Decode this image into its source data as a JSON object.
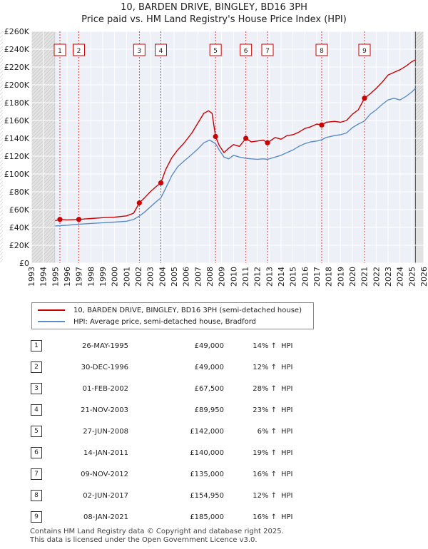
{
  "title_line1": "10, BARDEN DRIVE, BINGLEY, BD16 3PH",
  "title_line2": "Price paid vs. HM Land Registry's House Price Index (HPI)",
  "chart_data": {
    "type": "line",
    "title": "10, BARDEN DRIVE, BINGLEY, BD16 3PH — Price paid vs. HM Land Registry's House Price Index (HPI)",
    "xlabel": "",
    "ylabel": "",
    "xlim": [
      1993,
      2026
    ],
    "ylim": [
      0,
      260000
    ],
    "x_ticks": [
      1993,
      1994,
      1995,
      1996,
      1997,
      1998,
      1999,
      2000,
      2001,
      2002,
      2003,
      2004,
      2005,
      2006,
      2007,
      2008,
      2009,
      2010,
      2011,
      2012,
      2013,
      2014,
      2015,
      2016,
      2017,
      2018,
      2019,
      2020,
      2021,
      2022,
      2023,
      2024,
      2025,
      2026
    ],
    "y_ticks": [
      0,
      20000,
      40000,
      60000,
      80000,
      100000,
      120000,
      140000,
      160000,
      180000,
      200000,
      220000,
      240000,
      260000
    ],
    "y_tick_labels": [
      "£0",
      "£20K",
      "£40K",
      "£60K",
      "£80K",
      "£100K",
      "£120K",
      "£140K",
      "£160K",
      "£180K",
      "£200K",
      "£220K",
      "£240K",
      "£260K"
    ],
    "grid": true,
    "data_range": [
      1995.0,
      2025.3
    ],
    "series": [
      {
        "name": "10, BARDEN DRIVE, BINGLEY, BD16 3PH (semi-detached house)",
        "color": "#cc0000",
        "x": [
          1995.0,
          1995.4,
          1996.0,
          1996.99,
          1997.5,
          1998.0,
          1999.0,
          2000.0,
          2001.0,
          2001.6,
          2002.08,
          2002.5,
          2003.0,
          2003.5,
          2003.89,
          2004.3,
          2004.8,
          2005.3,
          2005.8,
          2006.5,
          2007.0,
          2007.5,
          2007.9,
          2008.2,
          2008.49,
          2008.8,
          2009.2,
          2009.6,
          2010.0,
          2010.5,
          2011.04,
          2011.5,
          2012.0,
          2012.5,
          2012.86,
          2013.5,
          2014.0,
          2014.5,
          2015.0,
          2015.5,
          2016.0,
          2016.5,
          2017.0,
          2017.42,
          2017.8,
          2018.5,
          2019.0,
          2019.5,
          2020.0,
          2020.5,
          2021.02,
          2021.5,
          2022.0,
          2022.5,
          2023.0,
          2023.5,
          2024.0,
          2024.5,
          2025.0,
          2025.3
        ],
        "values": [
          47500,
          49000,
          48500,
          49000,
          49500,
          50000,
          51000,
          51500,
          53000,
          56000,
          67500,
          73000,
          80000,
          86000,
          89950,
          105000,
          118000,
          127000,
          134000,
          146000,
          157000,
          168000,
          171000,
          168000,
          142000,
          132000,
          124000,
          129000,
          133000,
          131000,
          140000,
          136000,
          137000,
          138000,
          135000,
          141000,
          139000,
          143000,
          144000,
          147000,
          151000,
          153000,
          156000,
          154950,
          158000,
          159000,
          158000,
          160000,
          167000,
          172000,
          185000,
          190000,
          196000,
          203000,
          211000,
          214000,
          217000,
          221000,
          226000,
          228000
        ]
      },
      {
        "name": "HPI: Average price, semi-detached house, Bradford",
        "color": "#5b8cc8",
        "x": [
          1995.0,
          1996.0,
          1997.0,
          1998.0,
          1999.0,
          2000.0,
          2001.0,
          2001.6,
          2002.08,
          2002.5,
          2003.0,
          2003.5,
          2003.89,
          2004.3,
          2004.8,
          2005.3,
          2005.8,
          2006.5,
          2007.0,
          2007.5,
          2008.0,
          2008.49,
          2008.8,
          2009.2,
          2009.6,
          2010.0,
          2010.5,
          2011.04,
          2011.5,
          2012.0,
          2012.5,
          2012.86,
          2013.5,
          2014.0,
          2014.5,
          2015.0,
          2015.5,
          2016.0,
          2016.5,
          2017.0,
          2017.42,
          2017.8,
          2018.5,
          2019.0,
          2019.5,
          2020.0,
          2020.5,
          2021.02,
          2021.5,
          2022.0,
          2022.5,
          2023.0,
          2023.5,
          2024.0,
          2024.5,
          2025.0,
          2025.3
        ],
        "values": [
          41700,
          42500,
          43700,
          44500,
          45300,
          46000,
          47000,
          49000,
          52700,
          57000,
          63000,
          69000,
          73100,
          84000,
          98000,
          108000,
          114000,
          122000,
          128000,
          135000,
          138000,
          134000,
          127000,
          119000,
          117000,
          121000,
          119000,
          117600,
          117000,
          116500,
          117000,
          116400,
          119000,
          121000,
          124000,
          127000,
          131000,
          134000,
          136000,
          137000,
          138300,
          141000,
          143000,
          144000,
          146000,
          152000,
          156000,
          159500,
          167000,
          172000,
          178000,
          183000,
          185000,
          183000,
          187000,
          192000,
          196000
        ]
      }
    ],
    "sales": [
      {
        "n": "1",
        "x": 1995.4,
        "price": 49000
      },
      {
        "n": "2",
        "x": 1996.99,
        "price": 49000
      },
      {
        "n": "3",
        "x": 2002.08,
        "price": 67500
      },
      {
        "n": "4",
        "x": 2003.89,
        "price": 89950
      },
      {
        "n": "5",
        "x": 2008.49,
        "price": 142000
      },
      {
        "n": "6",
        "x": 2011.04,
        "price": 140000
      },
      {
        "n": "7",
        "x": 2012.86,
        "price": 135000
      },
      {
        "n": "8",
        "x": 2017.42,
        "price": 154950
      },
      {
        "n": "9",
        "x": 2021.02,
        "price": 185000
      }
    ]
  },
  "legend": {
    "red": "10, BARDEN DRIVE, BINGLEY, BD16 3PH (semi-detached house)",
    "blue": "HPI: Average price, semi-detached house, Bradford"
  },
  "table": [
    {
      "n": "1",
      "date": "26-MAY-1995",
      "price": "£49,000",
      "pct": "14% ↑",
      "dir": "HPI"
    },
    {
      "n": "2",
      "date": "30-DEC-1996",
      "price": "£49,000",
      "pct": "12% ↑",
      "dir": "HPI"
    },
    {
      "n": "3",
      "date": "01-FEB-2002",
      "price": "£67,500",
      "pct": "28% ↑",
      "dir": "HPI"
    },
    {
      "n": "4",
      "date": "21-NOV-2003",
      "price": "£89,950",
      "pct": "23% ↑",
      "dir": "HPI"
    },
    {
      "n": "5",
      "date": "27-JUN-2008",
      "price": "£142,000",
      "pct": "6% ↑",
      "dir": "HPI"
    },
    {
      "n": "6",
      "date": "14-JAN-2011",
      "price": "£140,000",
      "pct": "19% ↑",
      "dir": "HPI"
    },
    {
      "n": "7",
      "date": "09-NOV-2012",
      "price": "£135,000",
      "pct": "16% ↑",
      "dir": "HPI"
    },
    {
      "n": "8",
      "date": "02-JUN-2017",
      "price": "£154,950",
      "pct": "12% ↑",
      "dir": "HPI"
    },
    {
      "n": "9",
      "date": "08-JAN-2021",
      "price": "£185,000",
      "pct": "16% ↑",
      "dir": "HPI"
    }
  ],
  "footer_line1": "Contains HM Land Registry data © Copyright and database right 2025.",
  "footer_line2": "This data is licensed under the Open Government Licence v3.0."
}
